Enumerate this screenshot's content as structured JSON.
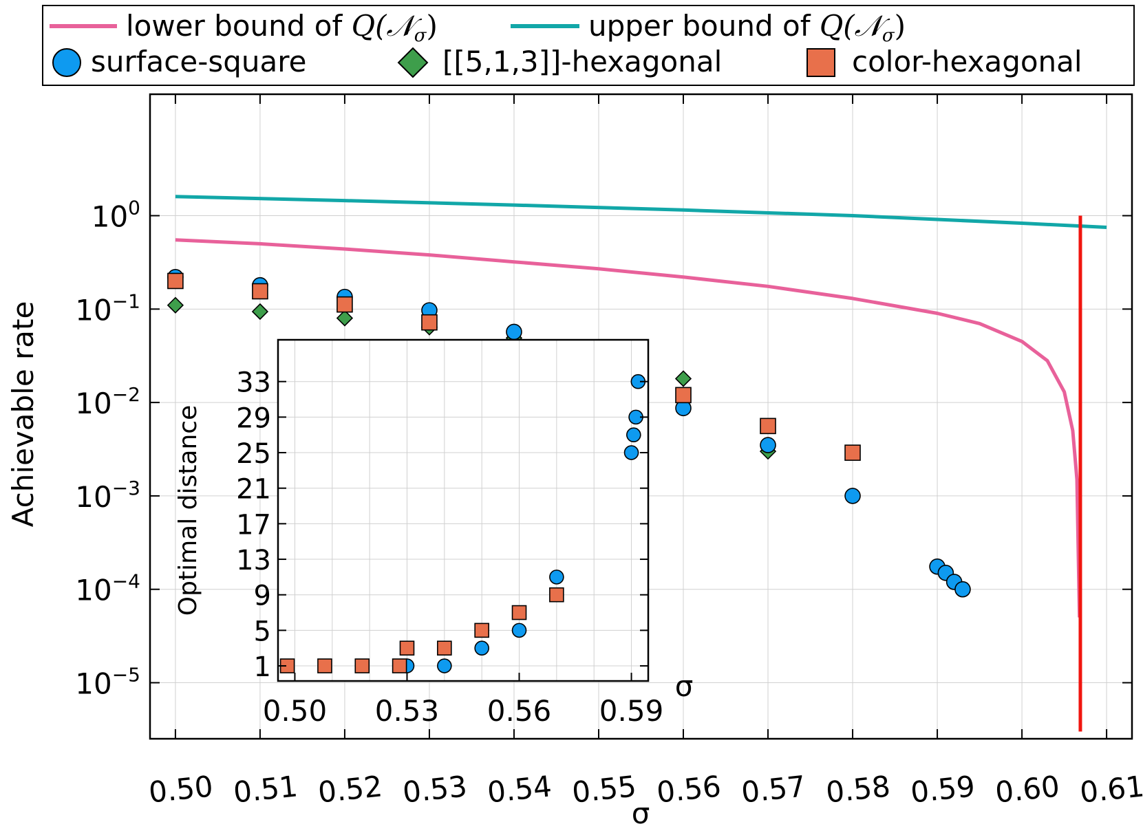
{
  "chart_data": [
    {
      "id": "main",
      "type": "scatter",
      "xlabel": "σ",
      "ylabel": "Achievable rate",
      "xlim": [
        0.497,
        0.613
      ],
      "ylim_log10": [
        -5.6,
        1.3
      ],
      "yscale": "log",
      "grid": true,
      "legend_position": "top",
      "x_ticks": [
        0.5,
        0.51,
        0.52,
        0.53,
        0.54,
        0.55,
        0.56,
        0.57,
        0.58,
        0.59,
        0.6,
        0.61
      ],
      "x_tick_labels": [
        "0.50",
        "0.51",
        "0.52",
        "0.53",
        "0.54",
        "0.55",
        "0.56",
        "0.57",
        "0.58",
        "0.59",
        "0.60",
        "0.61"
      ],
      "y_ticks": [
        {
          "value": 1,
          "base": "10",
          "exp": "0"
        },
        {
          "value": 0.1,
          "base": "10",
          "exp": "−1"
        },
        {
          "value": 0.01,
          "base": "10",
          "exp": "−2"
        },
        {
          "value": 0.001,
          "base": "10",
          "exp": "−3"
        },
        {
          "value": 0.0001,
          "base": "10",
          "exp": "−4"
        },
        {
          "value": 1e-05,
          "base": "10",
          "exp": "−5"
        }
      ],
      "lines": [
        {
          "key": "lower",
          "legend_text": "lower bound",
          "legend_of": "of",
          "legend_math": "Q(𝒩",
          "legend_sub": "σ",
          "legend_close": ")",
          "color": "#e8619a",
          "x": [
            0.5,
            0.51,
            0.52,
            0.53,
            0.54,
            0.55,
            0.56,
            0.57,
            0.58,
            0.59,
            0.595,
            0.6,
            0.603,
            0.605,
            0.606,
            0.6065,
            0.6068
          ],
          "y": [
            0.55,
            0.5,
            0.44,
            0.38,
            0.32,
            0.27,
            0.22,
            0.175,
            0.13,
            0.09,
            0.07,
            0.045,
            0.028,
            0.013,
            0.005,
            0.0015,
            5e-05
          ]
        },
        {
          "key": "upper",
          "legend_text": "upper bound",
          "legend_of": "of",
          "legend_math": "Q(𝒩",
          "legend_sub": "σ",
          "legend_close": ")",
          "color": "#12a7a8",
          "x": [
            0.5,
            0.52,
            0.54,
            0.56,
            0.58,
            0.6,
            0.61
          ],
          "y": [
            1.6,
            1.45,
            1.3,
            1.15,
            1.0,
            0.83,
            0.75
          ]
        }
      ],
      "threshold": {
        "x": 0.6069,
        "y_top": 1.0,
        "y_bottom": 3e-06,
        "color": "#f0150f"
      },
      "series": [
        {
          "key": "surface",
          "name": "surface-square",
          "marker": "circle",
          "color": "#0e9af0",
          "x": [
            0.5,
            0.51,
            0.52,
            0.53,
            0.54,
            0.55,
            0.56,
            0.57,
            0.58,
            0.59,
            0.591,
            0.592,
            0.593
          ],
          "y": [
            0.22,
            0.18,
            0.135,
            0.097,
            0.057,
            0.018,
            0.0087,
            0.0035,
            0.001,
            0.000175,
            0.00015,
            0.00012,
            0.0001
          ]
        },
        {
          "key": "hex513",
          "name": "[[5,1,3]]-hexagonal",
          "marker": "diamond",
          "color": "#3e9e4b",
          "x": [
            0.5,
            0.51,
            0.52,
            0.53,
            0.54,
            0.55,
            0.56,
            0.57
          ],
          "y": [
            0.11,
            0.094,
            0.08,
            0.064,
            0.049,
            0.034,
            0.018,
            0.003
          ]
        },
        {
          "key": "color",
          "name": "color-hexagonal",
          "marker": "square",
          "color": "#e8704b",
          "x": [
            0.5,
            0.51,
            0.52,
            0.53,
            0.54,
            0.55,
            0.56,
            0.57,
            0.58
          ],
          "y": [
            0.2,
            0.155,
            0.112,
            0.072,
            0.035,
            0.023,
            0.012,
            0.0056,
            0.0029
          ]
        }
      ]
    },
    {
      "id": "inset",
      "type": "scatter",
      "xlabel": "σ",
      "ylabel": "Optimal distance",
      "xlim": [
        0.4955,
        0.5945
      ],
      "ylim": [
        -0.7,
        37.7
      ],
      "grid": true,
      "x_ticks": [
        0.5,
        0.53,
        0.56,
        0.59
      ],
      "x_tick_labels": [
        "0.50",
        "0.53",
        "0.56",
        "0.59"
      ],
      "x_minor_grid": [
        0.5,
        0.51,
        0.52,
        0.53,
        0.54,
        0.55,
        0.56,
        0.57,
        0.58,
        0.59
      ],
      "y_ticks": [
        1,
        5,
        9,
        13,
        17,
        21,
        25,
        29,
        33
      ],
      "y_tick_labels": [
        "1",
        "5",
        "9",
        "13",
        "17",
        "21",
        "25",
        "29",
        "33"
      ],
      "series": [
        {
          "key": "surface",
          "name": "surface-square",
          "marker": "circle",
          "color": "#0e9af0",
          "x": [
            0.53,
            0.54,
            0.55,
            0.56,
            0.57,
            0.59,
            0.5906,
            0.5912,
            0.5918
          ],
          "y": [
            1,
            1,
            3,
            5,
            11,
            25,
            27,
            29,
            33
          ]
        },
        {
          "key": "color",
          "name": "color-hexagonal",
          "marker": "square",
          "color": "#e8704b",
          "x": [
            0.498,
            0.508,
            0.518,
            0.528,
            0.53,
            0.54,
            0.55,
            0.56,
            0.57
          ],
          "y": [
            1,
            1,
            1,
            1,
            3,
            3,
            5,
            7,
            9
          ]
        }
      ]
    }
  ]
}
